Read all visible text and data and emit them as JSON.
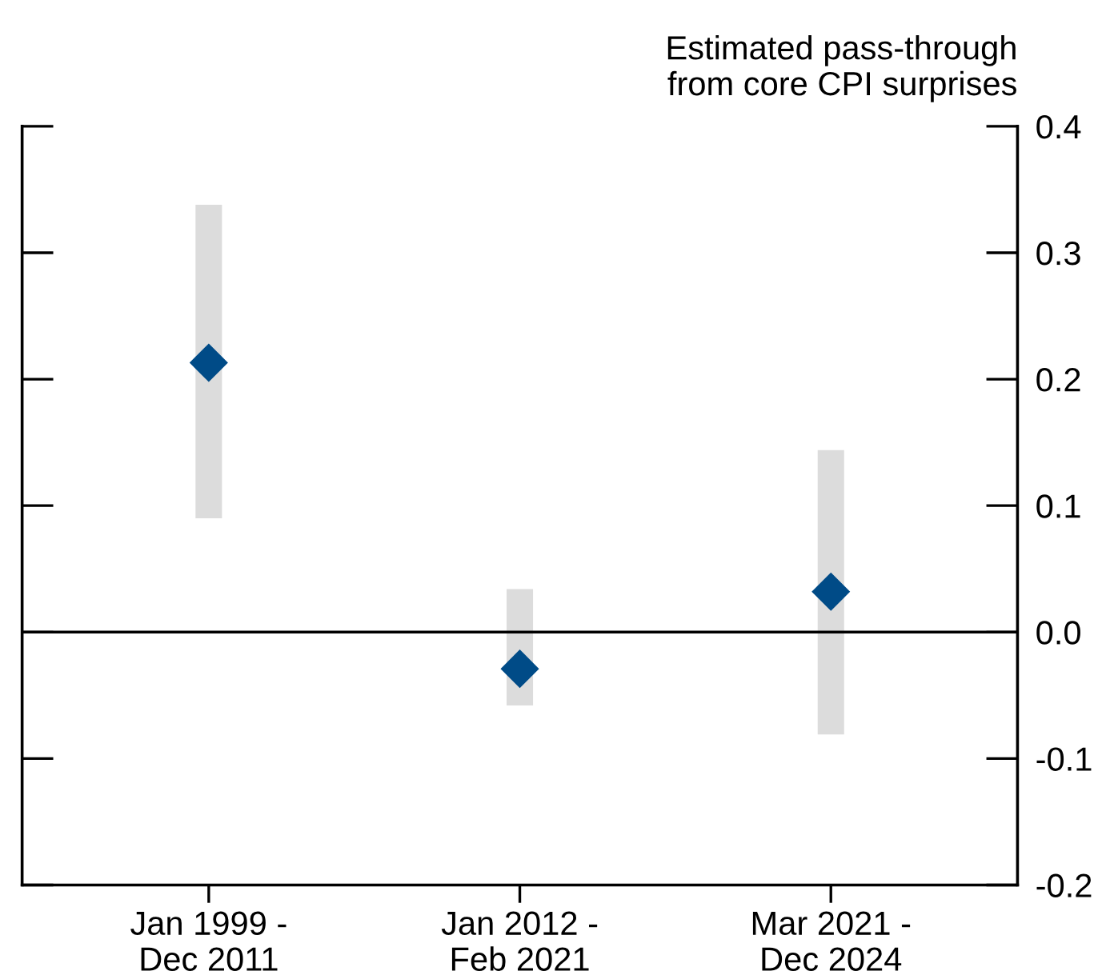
{
  "chart_data": {
    "type": "scatter",
    "title": "Estimated pass-through\nfrom core CPI surprises",
    "categories": [
      "Jan 1999 -\nDec 2011",
      "Jan 2012 -\nFeb 2021",
      "Mar 2021 -\nDec 2024"
    ],
    "series": [
      {
        "type": "bar",
        "color": "#dcdcdc",
        "base": [
          0.09,
          -0.058,
          -0.081
        ],
        "values": [
          0.248,
          0.092,
          0.225
        ]
      },
      {
        "color": "#004b87",
        "values": [
          0.213,
          -0.029,
          0.032
        ]
      }
    ],
    "marker": "diamond",
    "ylim": [
      -0.2,
      0.4
    ],
    "yticks": [
      {
        "value": -0.2,
        "label": "-0.2"
      },
      {
        "value": -0.1,
        "label": "-0.1"
      },
      {
        "value": 0.0,
        "label": "0.0"
      },
      {
        "value": 0.1,
        "label": "0.1"
      },
      {
        "value": 0.2,
        "label": "0.2"
      },
      {
        "value": 0.3,
        "label": "0.3"
      },
      {
        "value": 0.4,
        "label": "0.4"
      }
    ],
    "ref_lines": [
      {
        "axis": "y",
        "value": 0,
        "color": "#000000"
      }
    ],
    "grid": false,
    "legend": false
  }
}
